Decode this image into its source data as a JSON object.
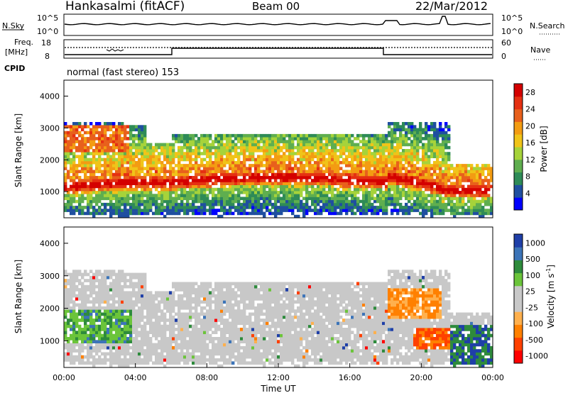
{
  "header": {
    "station": "Hankasalmi (fitACF)",
    "beam": "Beam 00",
    "date": "22/Mar/2012"
  },
  "noise_panel": {
    "left_label": "N.Sky",
    "right_label": "N.Search",
    "left_ticks": [
      "10^5",
      "10^0"
    ],
    "right_ticks": [
      "10^5",
      "10^0"
    ]
  },
  "freq_panel": {
    "left_label_1": "Freq.",
    "left_label_2": "[MHz]",
    "left_ticks": [
      "18",
      "8"
    ],
    "right_label": "Nave",
    "right_ticks": [
      "60",
      "0"
    ],
    "cpid_label": "CPID"
  },
  "cpid_text": "normal (fast stereo) 153",
  "colors": {
    "power_scale": [
      "#0000ff",
      "#1f4fa0",
      "#2e8b57",
      "#5fae4f",
      "#a6d33a",
      "#f0c419",
      "#f39c12",
      "#e8601c",
      "#e53012",
      "#d40000"
    ],
    "velocity_scale": [
      "#ff0000",
      "#ff4000",
      "#ff8000",
      "#ffb04d",
      "#c8c8c8",
      "#c8c8c8",
      "#6bc43a",
      "#2e8b3c",
      "#3c74b8",
      "#1f3fa8"
    ]
  },
  "chart_data": [
    {
      "type": "heatmap",
      "title": "Power",
      "xlabel": "Time UT",
      "ylabel": "Slant Range [km]",
      "xlim": [
        "00:00",
        "24:00"
      ],
      "ylim": [
        180,
        4500
      ],
      "y_ticks": [
        "1000",
        "2000",
        "3000",
        "4000"
      ],
      "colorbar_label": "Power [dB]",
      "colorbar_ticks": [
        "4",
        "8",
        "12",
        "16",
        "20",
        "24",
        "28"
      ],
      "colorbar_range": [
        0,
        30
      ]
    },
    {
      "type": "heatmap",
      "title": "Velocity",
      "xlabel": "Time UT",
      "ylabel": "Slant Range [km]",
      "xlim": [
        "00:00",
        "24:00"
      ],
      "ylim": [
        180,
        4500
      ],
      "y_ticks": [
        "1000",
        "2000",
        "3000",
        "4000"
      ],
      "x_ticks": [
        "00:00",
        "04:00",
        "08:00",
        "12:00",
        "16:00",
        "20:00",
        "00:00"
      ],
      "colorbar_label": "Velocity [m s^-1]",
      "colorbar_ticks": [
        "1000",
        "500",
        "100",
        "25",
        "-25",
        "-100",
        "-500",
        "-1000"
      ]
    }
  ]
}
